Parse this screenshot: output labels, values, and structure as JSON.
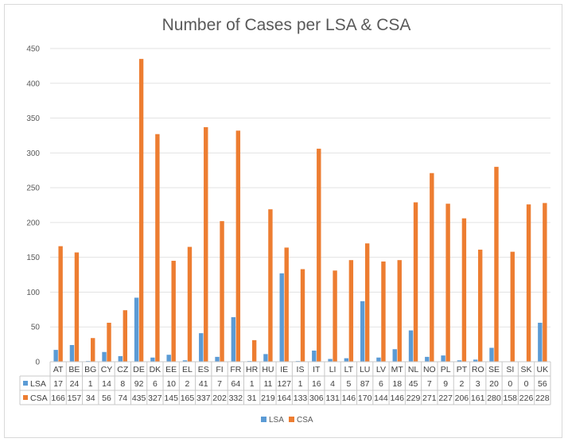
{
  "chart_data": {
    "type": "bar",
    "title": "Number of Cases per LSA & CSA",
    "xlabel": "",
    "ylabel": "",
    "ylim": [
      0,
      450
    ],
    "yticks": [
      0,
      50,
      100,
      150,
      200,
      250,
      300,
      350,
      400,
      450
    ],
    "grid": true,
    "legend_position": "bottom",
    "data_table": true,
    "categories": [
      "AT",
      "BE",
      "BG",
      "CY",
      "CZ",
      "DE",
      "DK",
      "EE",
      "EL",
      "ES",
      "FI",
      "FR",
      "HR",
      "HU",
      "IE",
      "IS",
      "IT",
      "LI",
      "LT",
      "LU",
      "LV",
      "MT",
      "NL",
      "NO",
      "PL",
      "PT",
      "RO",
      "SE",
      "SI",
      "SK",
      "UK"
    ],
    "series": [
      {
        "name": "LSA",
        "color": "#5b9bd5",
        "values": [
          17,
          24,
          1,
          14,
          8,
          92,
          6,
          10,
          2,
          41,
          7,
          64,
          1,
          11,
          127,
          1,
          16,
          4,
          5,
          87,
          6,
          18,
          45,
          7,
          9,
          2,
          3,
          20,
          0,
          0,
          56
        ]
      },
      {
        "name": "CSA",
        "color": "#ed7d31",
        "values": [
          166,
          157,
          34,
          56,
          74,
          435,
          327,
          145,
          165,
          337,
          202,
          332,
          31,
          219,
          164,
          133,
          306,
          131,
          146,
          170,
          144,
          146,
          229,
          271,
          227,
          206,
          161,
          280,
          158,
          226,
          228
        ]
      }
    ]
  }
}
